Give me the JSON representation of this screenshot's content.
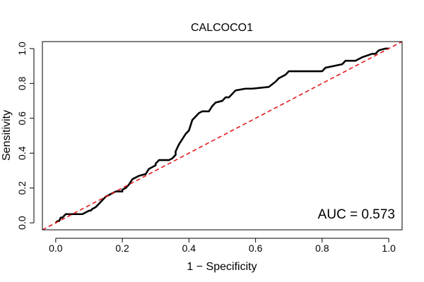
{
  "chart_data": {
    "type": "line",
    "title": "CALCOCO1",
    "xlabel": "1 − Specificity",
    "ylabel": "Sensitivity",
    "xlim": [
      -0.04,
      1.04
    ],
    "ylim": [
      -0.04,
      1.04
    ],
    "x_ticks": [
      "0.0",
      "0.2",
      "0.4",
      "0.6",
      "0.8",
      "1.0"
    ],
    "y_ticks": [
      "0.0",
      "0.2",
      "0.4",
      "0.6",
      "0.8",
      "1.0"
    ],
    "grid": false,
    "annotation": "AUC = 0.573",
    "colors": {
      "roc": "#000000",
      "reference": "#e31a1c",
      "axes": "#000000"
    },
    "series": [
      {
        "style": "solid",
        "x": [
          0.0,
          0.005,
          0.01,
          0.015,
          0.02,
          0.025,
          0.03,
          0.04,
          0.06,
          0.08,
          0.1,
          0.105,
          0.11,
          0.12,
          0.13,
          0.14,
          0.15,
          0.16,
          0.18,
          0.2,
          0.2,
          0.21,
          0.22,
          0.23,
          0.24,
          0.25,
          0.27,
          0.28,
          0.29,
          0.3,
          0.3,
          0.31,
          0.32,
          0.34,
          0.35,
          0.36,
          0.36,
          0.37,
          0.38,
          0.39,
          0.4,
          0.405,
          0.41,
          0.42,
          0.43,
          0.44,
          0.46,
          0.47,
          0.48,
          0.5,
          0.51,
          0.52,
          0.54,
          0.57,
          0.58,
          0.59,
          0.64,
          0.66,
          0.67,
          0.69,
          0.7,
          0.8,
          0.81,
          0.86,
          0.87,
          0.9,
          0.92,
          0.95,
          0.96,
          0.97,
          0.99,
          1.0
        ],
        "y": [
          0.0,
          0.01,
          0.01,
          0.03,
          0.03,
          0.04,
          0.05,
          0.05,
          0.05,
          0.05,
          0.07,
          0.07,
          0.08,
          0.09,
          0.11,
          0.13,
          0.15,
          0.16,
          0.18,
          0.18,
          0.19,
          0.2,
          0.22,
          0.25,
          0.26,
          0.27,
          0.28,
          0.31,
          0.32,
          0.33,
          0.34,
          0.36,
          0.36,
          0.36,
          0.37,
          0.39,
          0.41,
          0.45,
          0.48,
          0.51,
          0.53,
          0.56,
          0.59,
          0.61,
          0.63,
          0.64,
          0.64,
          0.67,
          0.69,
          0.7,
          0.72,
          0.72,
          0.76,
          0.77,
          0.77,
          0.77,
          0.78,
          0.81,
          0.83,
          0.85,
          0.87,
          0.87,
          0.89,
          0.91,
          0.93,
          0.93,
          0.95,
          0.97,
          0.97,
          0.99,
          1.0,
          1.0
        ]
      },
      {
        "style": "dashed",
        "x": [
          -0.04,
          1.04
        ],
        "y": [
          -0.04,
          1.04
        ]
      }
    ]
  }
}
